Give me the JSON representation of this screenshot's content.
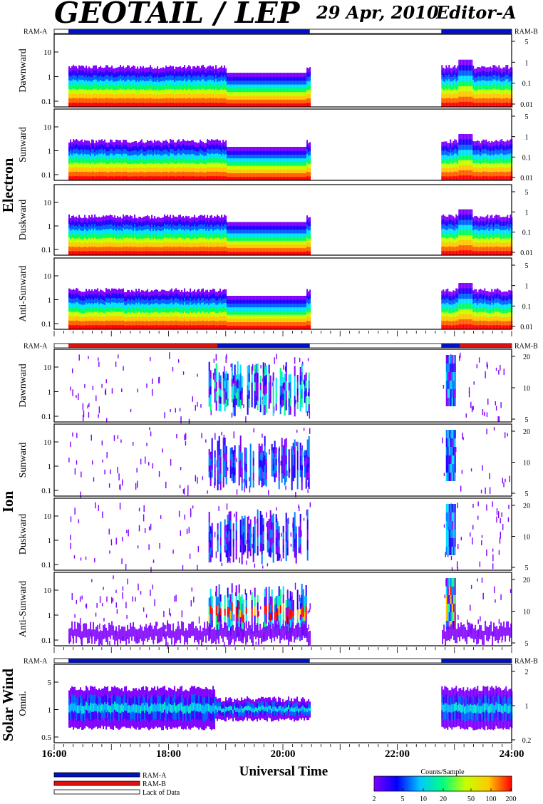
{
  "header": {
    "title": "GEOTAIL / LEP",
    "date": "29 Apr, 2010",
    "editor": "Editor-A"
  },
  "chart_data": {
    "type": "heatmap",
    "xlabel": "Universal Time",
    "x_ticks": [
      "16:00",
      "18:00",
      "20:00",
      "22:00",
      "24:00"
    ],
    "x_range_hours": [
      16,
      24
    ],
    "groups": [
      {
        "label": "Electron",
        "ram_left": "RAM-A",
        "ram_right": "RAM-B",
        "ram_bar": [
          {
            "start": 16.0,
            "end": 16.25,
            "mode": "Lack of Data"
          },
          {
            "start": 16.25,
            "end": 20.47,
            "mode": "RAM-A"
          },
          {
            "start": 20.47,
            "end": 22.77,
            "mode": "Lack of Data"
          },
          {
            "start": 22.77,
            "end": 24.0,
            "mode": "RAM-A"
          }
        ],
        "panels": [
          {
            "label": "Dawnward",
            "yticks_left": [
              "10",
              "1",
              "0.1"
            ],
            "yticks_right": [
              "5",
              "1",
              "0.1",
              "0.01"
            ]
          },
          {
            "label": "Sunward",
            "yticks_left": [
              "10",
              "1",
              "0.1"
            ],
            "yticks_right": [
              "5",
              "1",
              "0.1",
              "0.01"
            ]
          },
          {
            "label": "Duskward",
            "yticks_left": [
              "10",
              "1",
              "0.1"
            ],
            "yticks_right": [
              "5",
              "1",
              "0.1",
              "0.01"
            ]
          },
          {
            "label": "Anti-Sunward",
            "yticks_left": [
              "10",
              "1",
              "0.1"
            ],
            "yticks_right": [
              "5",
              "1",
              "0.1",
              "0.01"
            ]
          }
        ]
      },
      {
        "label": "Ion",
        "ram_left": "RAM-A",
        "ram_right": "RAM-B",
        "ram_bar": [
          {
            "start": 16.0,
            "end": 16.25,
            "mode": "Lack of Data"
          },
          {
            "start": 16.25,
            "end": 18.85,
            "mode": "RAM-B"
          },
          {
            "start": 18.85,
            "end": 20.47,
            "mode": "RAM-A"
          },
          {
            "start": 20.47,
            "end": 22.77,
            "mode": "Lack of Data"
          },
          {
            "start": 22.77,
            "end": 23.1,
            "mode": "RAM-A"
          },
          {
            "start": 23.1,
            "end": 24.0,
            "mode": "RAM-B"
          }
        ],
        "panels": [
          {
            "label": "Dawnward",
            "yticks_left": [
              "10",
              "1",
              "0.1"
            ],
            "yticks_right": [
              "20",
              "10",
              "5"
            ]
          },
          {
            "label": "Sunward",
            "yticks_left": [
              "10",
              "1",
              "0.1"
            ],
            "yticks_right": [
              "20",
              "10",
              "5"
            ]
          },
          {
            "label": "Duskward",
            "yticks_left": [
              "10",
              "1",
              "0.1"
            ],
            "yticks_right": [
              "20",
              "10",
              "5"
            ]
          },
          {
            "label": "Anti-Sunward",
            "yticks_left": [
              "10",
              "1",
              "0.1"
            ],
            "yticks_right": [
              "20",
              "10",
              "5"
            ]
          }
        ]
      },
      {
        "label": "Solar Wind",
        "ram_left": "RAM-A",
        "ram_right": "RAM-B",
        "ram_bar": [
          {
            "start": 16.0,
            "end": 16.25,
            "mode": "Lack of Data"
          },
          {
            "start": 16.25,
            "end": 20.47,
            "mode": "RAM-A"
          },
          {
            "start": 20.47,
            "end": 22.77,
            "mode": "Lack of Data"
          },
          {
            "start": 22.77,
            "end": 24.0,
            "mode": "RAM-A"
          }
        ],
        "panels": [
          {
            "label": "Omni.",
            "yticks_left": [
              "5",
              "1",
              "0.5"
            ],
            "yticks_right": [
              "2",
              "1",
              "0.2"
            ]
          }
        ]
      }
    ],
    "legend": [
      {
        "label": "RAM-A",
        "color": "#0010c8"
      },
      {
        "label": "RAM-B",
        "color": "#e01010"
      },
      {
        "label": "Lack of Data",
        "color": "#ffffff"
      }
    ],
    "colorbar": {
      "label": "Counts/Sample",
      "ticks": [
        "2",
        "5",
        "10",
        "20",
        "50",
        "100",
        "200"
      ],
      "colors": [
        "#7f00ff",
        "#0000ff",
        "#00c8ff",
        "#00ff80",
        "#c8ff00",
        "#ffc800",
        "#ff0000"
      ]
    }
  }
}
